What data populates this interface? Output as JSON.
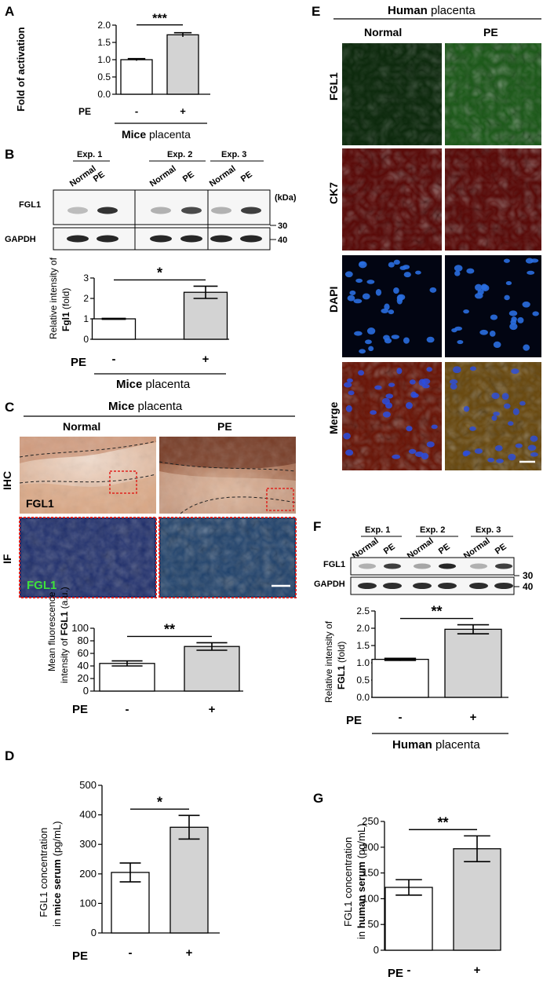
{
  "colors": {
    "bar_control": "#ffffff",
    "bar_pe": "#d3d3d3",
    "ihc_bg": "#e9c8b4",
    "ihc_dark": "#9a5a3c",
    "if_bg": "#1a2a6a",
    "if_green": "#39c43a",
    "fgl1_green": "#4cc24a",
    "ck7_red": "#d9241c",
    "dapi_blue": "#2a6ee0",
    "merge_yellow": "#d6b52c",
    "box_red": "#e0241f",
    "scale_white": "#ffffff"
  },
  "panels": {
    "A": "A",
    "B": "B",
    "C": "C",
    "D": "D",
    "E": "E",
    "F": "F",
    "G": "G"
  },
  "common": {
    "pe": "PE",
    "minus": "-",
    "plus": "+",
    "normal": "Normal",
    "exp1": "Exp. 1",
    "exp2": "Exp. 2",
    "exp3": "Exp. 3",
    "fgl1": "FGL1",
    "gapdh": "GAPDH",
    "kda": "(kDa)",
    "mw30": "30",
    "mw40": "40"
  },
  "panelA": {
    "group_bold": "Mice",
    "group_rest": " placenta",
    "significance": "***",
    "chart_data": {
      "type": "bar",
      "categories": [
        "-",
        "+"
      ],
      "values": [
        1.0,
        1.72
      ],
      "errors": [
        0.03,
        0.06
      ],
      "ylabel": "Fold of activation",
      "yticks": [
        "0.0",
        "0.5",
        "1.0",
        "1.5",
        "2.0"
      ],
      "ylim": [
        0,
        2.0
      ]
    }
  },
  "panelB": {
    "group_bold": "Mice",
    "group_rest": " placenta",
    "significance": "*",
    "ylabel_line1": "Relative intensity of",
    "ylabel_line2": "Fgl1",
    "ylabel_line2_rest": " (fold)",
    "chart_data": {
      "type": "bar",
      "categories": [
        "-",
        "+"
      ],
      "values": [
        1.0,
        2.3
      ],
      "errors": [
        0.02,
        0.3
      ],
      "yticks": [
        "0",
        "1",
        "2",
        "3"
      ],
      "ylim": [
        0,
        3
      ]
    }
  },
  "panelC": {
    "title_bold": "Mice",
    "title_rest": " placenta",
    "ihc": "IHC",
    "if": "IF",
    "significance": "**",
    "ylabel_line1": "Mean fluorescence",
    "ylabel_line2": "intensity of ",
    "ylabel_line2_bold": "FGL1",
    "ylabel_line2_rest": " (a.u.)",
    "chart_data": {
      "type": "bar",
      "categories": [
        "-",
        "+"
      ],
      "values": [
        44,
        71
      ],
      "errors": [
        4,
        6
      ],
      "yticks": [
        "0",
        "20",
        "40",
        "60",
        "80",
        "100"
      ],
      "ylim": [
        0,
        100
      ]
    }
  },
  "panelD": {
    "significance": "*",
    "ylabel_line1": "FGL1 concentration",
    "ylabel_line2_pre": "in ",
    "ylabel_line2_bold": "mice serum",
    "ylabel_line2_rest": " (pg/mL)",
    "chart_data": {
      "type": "bar",
      "categories": [
        "-",
        "+"
      ],
      "values": [
        205,
        358
      ],
      "errors": [
        32,
        40
      ],
      "yticks": [
        "0",
        "100",
        "200",
        "300",
        "400",
        "500"
      ],
      "ylim": [
        0,
        500
      ]
    }
  },
  "panelE": {
    "title_bold": "Human",
    "title_rest": " placenta",
    "rows": [
      "FGL1",
      "CK7",
      "DAPI",
      "Merge"
    ]
  },
  "panelF": {
    "group_bold": "Human",
    "group_rest": " placenta",
    "significance": "**",
    "ylabel_line1": "Relative intensity of",
    "ylabel_line2": "FGL1",
    "ylabel_line2_rest": " (fold)",
    "chart_data": {
      "type": "bar",
      "categories": [
        "-",
        "+"
      ],
      "values": [
        1.1,
        1.97
      ],
      "errors": [
        0.03,
        0.13
      ],
      "yticks": [
        "0.0",
        "0.5",
        "1.0",
        "1.5",
        "2.0",
        "2.5"
      ],
      "ylim": [
        0,
        2.5
      ]
    }
  },
  "panelG": {
    "significance": "**",
    "ylabel_line1": "FGL1 concentration",
    "ylabel_line2_pre": "in ",
    "ylabel_line2_bold": "human serum",
    "ylabel_line2_rest": " (pg/mL)",
    "chart_data": {
      "type": "bar",
      "categories": [
        "-",
        "+"
      ],
      "values": [
        122,
        197
      ],
      "errors": [
        15,
        25
      ],
      "yticks": [
        "0",
        "50",
        "100",
        "150",
        "200",
        "250"
      ],
      "ylim": [
        0,
        250
      ]
    }
  }
}
